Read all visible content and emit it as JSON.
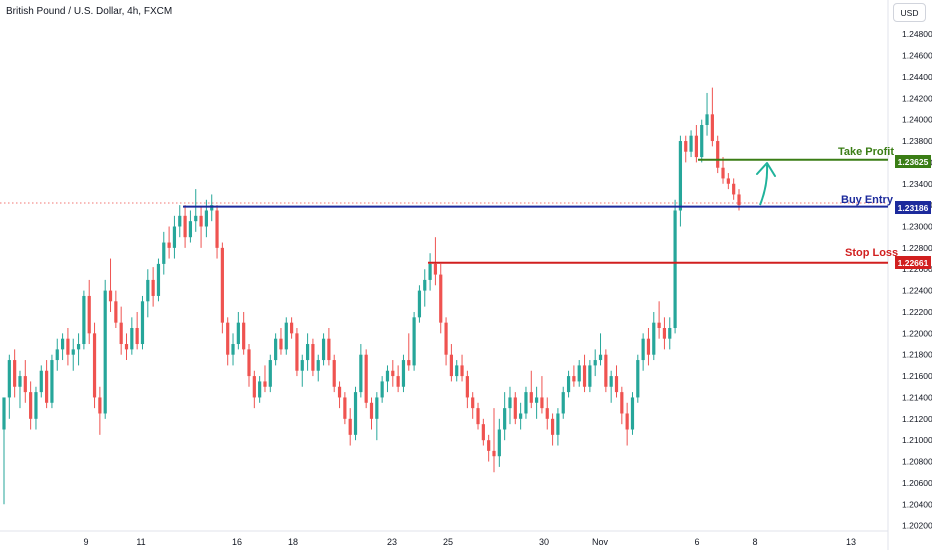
{
  "header": {
    "title": "British Pound / U.S. Dollar, 4h, FXCM",
    "currency_button": "USD"
  },
  "colors": {
    "up": "#26a69a",
    "down": "#ef5350",
    "take_profit": "#3a7d15",
    "buy_entry": "#1c2a9c",
    "stop_loss": "#d11f1f",
    "arrow": "#20b39b"
  },
  "levels": {
    "take_profit": {
      "label": "Take Profit",
      "price": 1.23625,
      "tag": "1.23625"
    },
    "buy_entry": {
      "label": "Buy Entry",
      "price": 1.23186,
      "tag": "1.23186"
    },
    "stop_loss": {
      "label": "Stop Loss",
      "price": 1.22661,
      "tag": "1.22661"
    }
  },
  "chart_data": {
    "type": "candlestick",
    "title": "British Pound / U.S. Dollar, 4h, FXCM",
    "ylim": [
      1.2015,
      1.2512
    ],
    "y_ticks": [
      "1.24800",
      "1.24600",
      "1.24400",
      "1.24200",
      "1.24000",
      "1.23800",
      "1.23600",
      "1.23400",
      "1.23200",
      "1.23000",
      "1.22800",
      "1.22600",
      "1.22400",
      "1.22200",
      "1.22000",
      "1.21800",
      "1.21600",
      "1.21400",
      "1.21200",
      "1.21000",
      "1.20800",
      "1.20600",
      "1.20400",
      "1.20200"
    ],
    "x_ticks": [
      "9",
      "11",
      "16",
      "18",
      "23",
      "25",
      "30",
      "Nov",
      "6",
      "8",
      "13"
    ],
    "grid": false,
    "series": [
      {
        "values": [
          [
            1.211,
            1.214,
            1.204,
            1.214
          ],
          [
            1.214,
            1.218,
            1.212,
            1.2175
          ],
          [
            1.2175,
            1.2185,
            1.214,
            1.215
          ],
          [
            1.215,
            1.2165,
            1.213,
            1.216
          ],
          [
            1.216,
            1.2175,
            1.2135,
            1.2145
          ],
          [
            1.2145,
            1.2155,
            1.211,
            1.212
          ],
          [
            1.212,
            1.215,
            1.211,
            1.2145
          ],
          [
            1.2145,
            1.217,
            1.214,
            1.2165
          ],
          [
            1.2165,
            1.2175,
            1.213,
            1.2135
          ],
          [
            1.2135,
            1.218,
            1.213,
            1.2175
          ],
          [
            1.2175,
            1.2195,
            1.2165,
            1.2185
          ],
          [
            1.2185,
            1.22,
            1.2175,
            1.2195
          ],
          [
            1.2195,
            1.2205,
            1.217,
            1.218
          ],
          [
            1.218,
            1.2195,
            1.2165,
            1.2185
          ],
          [
            1.2185,
            1.22,
            1.217,
            1.219
          ],
          [
            1.219,
            1.224,
            1.2185,
            1.2235
          ],
          [
            1.2235,
            1.225,
            1.219,
            1.22
          ],
          [
            1.22,
            1.221,
            1.213,
            1.214
          ],
          [
            1.214,
            1.215,
            1.2105,
            1.2125
          ],
          [
            1.2125,
            1.225,
            1.212,
            1.224
          ],
          [
            1.224,
            1.227,
            1.222,
            1.223
          ],
          [
            1.223,
            1.224,
            1.2205,
            1.221
          ],
          [
            1.221,
            1.2225,
            1.218,
            1.219
          ],
          [
            1.219,
            1.22,
            1.2175,
            1.2185
          ],
          [
            1.2185,
            1.2215,
            1.218,
            1.2205
          ],
          [
            1.2205,
            1.222,
            1.2185,
            1.219
          ],
          [
            1.219,
            1.2235,
            1.2185,
            1.223
          ],
          [
            1.223,
            1.226,
            1.2215,
            1.225
          ],
          [
            1.225,
            1.2262,
            1.2225,
            1.2235
          ],
          [
            1.2235,
            1.227,
            1.223,
            1.2265
          ],
          [
            1.2265,
            1.2295,
            1.2255,
            1.2285
          ],
          [
            1.2285,
            1.23,
            1.227,
            1.228
          ],
          [
            1.228,
            1.231,
            1.227,
            1.23
          ],
          [
            1.23,
            1.232,
            1.229,
            1.231
          ],
          [
            1.231,
            1.232,
            1.228,
            1.229
          ],
          [
            1.229,
            1.2315,
            1.2285,
            1.2305
          ],
          [
            1.2305,
            1.2335,
            1.2295,
            1.231
          ],
          [
            1.231,
            1.2318,
            1.228,
            1.23
          ],
          [
            1.23,
            1.2325,
            1.229,
            1.2315
          ],
          [
            1.2315,
            1.233,
            1.2305,
            1.232
          ],
          [
            1.2315,
            1.232,
            1.227,
            1.228
          ],
          [
            1.228,
            1.2285,
            1.22,
            1.221
          ],
          [
            1.221,
            1.2215,
            1.217,
            1.218
          ],
          [
            1.218,
            1.22,
            1.217,
            1.219
          ],
          [
            1.219,
            1.222,
            1.2185,
            1.221
          ],
          [
            1.221,
            1.222,
            1.218,
            1.2185
          ],
          [
            1.2185,
            1.219,
            1.215,
            1.216
          ],
          [
            1.216,
            1.2165,
            1.213,
            1.214
          ],
          [
            1.214,
            1.216,
            1.2135,
            1.2155
          ],
          [
            1.2155,
            1.217,
            1.2145,
            1.215
          ],
          [
            1.215,
            1.218,
            1.2145,
            1.2175
          ],
          [
            1.2175,
            1.22,
            1.217,
            1.2195
          ],
          [
            1.2195,
            1.2205,
            1.218,
            1.2185
          ],
          [
            1.2185,
            1.2215,
            1.218,
            1.221
          ],
          [
            1.221,
            1.2215,
            1.2195,
            1.22
          ],
          [
            1.22,
            1.2205,
            1.216,
            1.2165
          ],
          [
            1.2165,
            1.218,
            1.215,
            1.2175
          ],
          [
            1.2175,
            1.22,
            1.2165,
            1.219
          ],
          [
            1.219,
            1.2195,
            1.216,
            1.2165
          ],
          [
            1.2165,
            1.218,
            1.2155,
            1.2175
          ],
          [
            1.2175,
            1.22,
            1.217,
            1.2195
          ],
          [
            1.2195,
            1.2205,
            1.217,
            1.2175
          ],
          [
            1.2175,
            1.218,
            1.2145,
            1.215
          ],
          [
            1.215,
            1.2155,
            1.213,
            1.214
          ],
          [
            1.214,
            1.2145,
            1.2115,
            1.212
          ],
          [
            1.212,
            1.213,
            1.2095,
            1.2105
          ],
          [
            1.2105,
            1.215,
            1.21,
            1.2145
          ],
          [
            1.2145,
            1.219,
            1.214,
            1.218
          ],
          [
            1.218,
            1.2185,
            1.213,
            1.2135
          ],
          [
            1.2135,
            1.214,
            1.211,
            1.212
          ],
          [
            1.212,
            1.2145,
            1.21,
            1.214
          ],
          [
            1.214,
            1.216,
            1.2135,
            1.2155
          ],
          [
            1.2155,
            1.217,
            1.2145,
            1.2165
          ],
          [
            1.2165,
            1.2175,
            1.215,
            1.216
          ],
          [
            1.216,
            1.217,
            1.2145,
            1.215
          ],
          [
            1.215,
            1.218,
            1.2145,
            1.2175
          ],
          [
            1.2175,
            1.22,
            1.2165,
            1.217
          ],
          [
            1.217,
            1.222,
            1.2165,
            1.2215
          ],
          [
            1.2215,
            1.2245,
            1.221,
            1.224
          ],
          [
            1.224,
            1.226,
            1.2225,
            1.225
          ],
          [
            1.225,
            1.2275,
            1.224,
            1.2265
          ],
          [
            1.2265,
            1.229,
            1.2245,
            1.2255
          ],
          [
            1.2255,
            1.2265,
            1.22,
            1.221
          ],
          [
            1.221,
            1.2215,
            1.217,
            1.218
          ],
          [
            1.218,
            1.219,
            1.2155,
            1.216
          ],
          [
            1.216,
            1.2175,
            1.2155,
            1.217
          ],
          [
            1.217,
            1.218,
            1.2155,
            1.216
          ],
          [
            1.216,
            1.2165,
            1.213,
            1.214
          ],
          [
            1.214,
            1.2145,
            1.212,
            1.213
          ],
          [
            1.213,
            1.2135,
            1.211,
            1.2115
          ],
          [
            1.2115,
            1.212,
            1.2095,
            1.21
          ],
          [
            1.21,
            1.2105,
            1.208,
            1.209
          ],
          [
            1.209,
            1.213,
            1.207,
            1.2085
          ],
          [
            1.2085,
            1.212,
            1.2075,
            1.211
          ],
          [
            1.211,
            1.2145,
            1.21,
            1.213
          ],
          [
            1.213,
            1.215,
            1.2115,
            1.214
          ],
          [
            1.214,
            1.2145,
            1.2115,
            1.212
          ],
          [
            1.212,
            1.2135,
            1.211,
            1.2125
          ],
          [
            1.2125,
            1.215,
            1.212,
            1.2145
          ],
          [
            1.2145,
            1.2165,
            1.213,
            1.2135
          ],
          [
            1.2135,
            1.215,
            1.212,
            1.214
          ],
          [
            1.214,
            1.216,
            1.2125,
            1.213
          ],
          [
            1.213,
            1.214,
            1.211,
            1.212
          ],
          [
            1.212,
            1.2125,
            1.2095,
            1.2105
          ],
          [
            1.2105,
            1.213,
            1.2095,
            1.2125
          ],
          [
            1.2125,
            1.215,
            1.212,
            1.2145
          ],
          [
            1.2145,
            1.2165,
            1.214,
            1.216
          ],
          [
            1.216,
            1.217,
            1.215,
            1.2155
          ],
          [
            1.2155,
            1.2175,
            1.215,
            1.217
          ],
          [
            1.217,
            1.218,
            1.2145,
            1.215
          ],
          [
            1.215,
            1.2175,
            1.2145,
            1.217
          ],
          [
            1.217,
            1.2185,
            1.216,
            1.2175
          ],
          [
            1.2175,
            1.22,
            1.217,
            1.218
          ],
          [
            1.218,
            1.2185,
            1.2145,
            1.215
          ],
          [
            1.215,
            1.2165,
            1.2135,
            1.216
          ],
          [
            1.216,
            1.217,
            1.214,
            1.2145
          ],
          [
            1.2145,
            1.215,
            1.2115,
            1.2125
          ],
          [
            1.2125,
            1.2135,
            1.2095,
            1.211
          ],
          [
            1.211,
            1.2145,
            1.2105,
            1.214
          ],
          [
            1.214,
            1.218,
            1.2135,
            1.2175
          ],
          [
            1.2175,
            1.22,
            1.2165,
            1.2195
          ],
          [
            1.2195,
            1.2205,
            1.217,
            1.218
          ],
          [
            1.218,
            1.222,
            1.2175,
            1.221
          ],
          [
            1.221,
            1.223,
            1.2195,
            1.2205
          ],
          [
            1.2205,
            1.2215,
            1.2185,
            1.2195
          ],
          [
            1.2195,
            1.2215,
            1.2185,
            1.2205
          ],
          [
            1.2205,
            1.2325,
            1.22,
            1.2315
          ],
          [
            1.2315,
            1.2385,
            1.23,
            1.238
          ],
          [
            1.238,
            1.2385,
            1.236,
            1.237
          ],
          [
            1.237,
            1.239,
            1.2365,
            1.2385
          ],
          [
            1.2385,
            1.2395,
            1.236,
            1.2365
          ],
          [
            1.2365,
            1.24,
            1.236,
            1.2395
          ],
          [
            1.2395,
            1.2425,
            1.2385,
            1.2405
          ],
          [
            1.2405,
            1.243,
            1.2375,
            1.238
          ],
          [
            1.238,
            1.2385,
            1.235,
            1.2355
          ],
          [
            1.2355,
            1.2365,
            1.234,
            1.2345
          ],
          [
            1.2345,
            1.235,
            1.2335,
            1.234
          ],
          [
            1.234,
            1.2345,
            1.2325,
            1.233
          ],
          [
            1.233,
            1.2335,
            1.2315,
            1.232
          ]
        ]
      }
    ]
  }
}
